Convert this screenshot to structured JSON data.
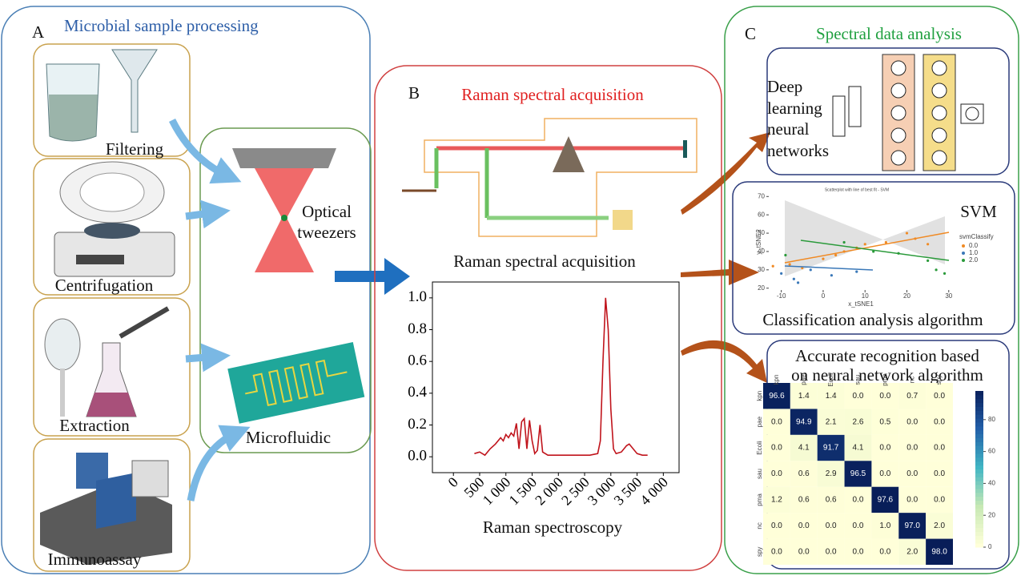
{
  "panel_a": {
    "letter": "A",
    "title": "Microbial sample processing",
    "methods": [
      "Filtering",
      "Centrifugation",
      "Extraction",
      "Immunoassay"
    ],
    "tweezers_label": [
      "Optical",
      "tweezers"
    ],
    "microfluidic_label": "Microfluidic"
  },
  "panel_b": {
    "letter": "B",
    "title": "Raman spectral acquisition",
    "caption": "Raman spectral acquisition",
    "spectrum_plot": {
      "type": "line",
      "xlabel": "Raman spectroscopy",
      "color": "#c0141c",
      "x": [
        400,
        500,
        600,
        700,
        800,
        900,
        950,
        1000,
        1050,
        1100,
        1150,
        1200,
        1250,
        1300,
        1350,
        1400,
        1450,
        1500,
        1550,
        1600,
        1650,
        1700,
        1800,
        2000,
        2200,
        2400,
        2600,
        2750,
        2800,
        2850,
        2900,
        2950,
        3000,
        3050,
        3100,
        3200,
        3300,
        3350,
        3400,
        3500,
        3600,
        3700
      ],
      "values": [
        0.02,
        0.03,
        0.01,
        0.05,
        0.08,
        0.12,
        0.1,
        0.14,
        0.12,
        0.15,
        0.13,
        0.21,
        0.05,
        0.22,
        0.24,
        0.05,
        0.23,
        0.1,
        0.02,
        0.04,
        0.2,
        0.03,
        0.01,
        0.01,
        0.01,
        0.01,
        0.01,
        0.02,
        0.1,
        0.6,
        1.0,
        0.8,
        0.3,
        0.05,
        0.02,
        0.03,
        0.07,
        0.08,
        0.06,
        0.02,
        0.01,
        0.01
      ],
      "xlim": [
        -400,
        4300
      ],
      "ylim": [
        -0.1,
        1.1
      ],
      "xticks": [
        0,
        500,
        {
          "value": 1000,
          "label": "1 000"
        },
        {
          "value": 1500,
          "label": "1 500"
        },
        {
          "value": 2000,
          "label": "2 000"
        },
        {
          "value": 2500,
          "label": "2 500"
        },
        {
          "value": 3000,
          "label": "3 000"
        },
        {
          "value": 3500,
          "label": "3 500"
        },
        {
          "value": 4000,
          "label": "4 000"
        }
      ],
      "yticks": [
        {
          "value": 0,
          "label": "0.0"
        },
        {
          "value": 0.2,
          "label": "0.2"
        },
        {
          "value": 0.4,
          "label": "0.4"
        },
        {
          "value": 0.6,
          "label": "0.6"
        },
        {
          "value": 0.8,
          "label": "0.8"
        },
        {
          "value": 1,
          "label": "1.0"
        }
      ]
    }
  },
  "panel_c": {
    "letter": "C",
    "title": "Spectral data analysis",
    "deep_learning_label": [
      "Deep",
      "learning",
      "neural",
      "networks"
    ],
    "svm": {
      "type": "scatter",
      "title": "Scatterplot with line of best fit - SVM",
      "badge": "SVM",
      "xlabel": "x_tSNE1",
      "ylabel": "y_tSNE2",
      "legend_title": "svmClassify",
      "caption": "Classification analysis algorithm",
      "xlim": [
        -13,
        31
      ],
      "ylim": [
        19,
        71
      ],
      "xticks": [
        -10,
        0,
        10,
        20,
        30
      ],
      "yticks": [
        20,
        30,
        40,
        50,
        60,
        70
      ],
      "series": [
        {
          "name": "0.0",
          "color": "#f08a24",
          "x": [
            -12,
            -8,
            -5,
            0,
            3,
            5,
            8,
            10,
            15,
            20,
            22,
            25
          ],
          "values": [
            32,
            33,
            31,
            36,
            38,
            40,
            42,
            44,
            45,
            50,
            47,
            44
          ]
        },
        {
          "name": "1.0",
          "color": "#3a78b8",
          "x": [
            -10,
            -7,
            -6,
            -3,
            2,
            8
          ],
          "values": [
            28,
            25,
            23,
            30,
            27,
            29
          ]
        },
        {
          "name": "2.0",
          "color": "#2a9a3a",
          "x": [
            -9,
            5,
            12,
            18,
            25,
            27,
            29
          ],
          "values": [
            38,
            45,
            40,
            39,
            35,
            30,
            28
          ]
        }
      ]
    },
    "matrix": {
      "type": "heatmap",
      "title": [
        "Accurate recognition based",
        "on neural network algorithm"
      ],
      "labels": [
        "kpn",
        "pae",
        "Ecoli",
        "sau",
        "pma",
        "nc",
        "spy"
      ],
      "values": [
        [
          96.6,
          1.4,
          1.4,
          0,
          0,
          0.7,
          0
        ],
        [
          0,
          94.9,
          2.1,
          2.6,
          0.5,
          0,
          0
        ],
        [
          0,
          4.1,
          91.7,
          4.1,
          0,
          0,
          0
        ],
        [
          0,
          0.6,
          2.9,
          96.5,
          0,
          0,
          0
        ],
        [
          1.2,
          0.6,
          0.6,
          0,
          97.6,
          0,
          0
        ],
        [
          0,
          0,
          0,
          0,
          1.0,
          97.0,
          2.0
        ],
        [
          0,
          0,
          0,
          0,
          0,
          2.0,
          98.0
        ]
      ],
      "value_labels": [
        [
          "96.6",
          "1.4",
          "1.4",
          "0.0",
          "0.0",
          "0.7",
          "0.0"
        ],
        [
          "0.0",
          "94.9",
          "2.1",
          "2.6",
          "0.5",
          "0.0",
          "0.0"
        ],
        [
          "0.0",
          "4.1",
          "91.7",
          "4.1",
          "0.0",
          "0.0",
          "0.0"
        ],
        [
          "0.0",
          "0.6",
          "2.9",
          "96.5",
          "0.0",
          "0.0",
          "0.0"
        ],
        [
          "1.2",
          "0.6",
          "0.6",
          "0.0",
          "97.6",
          "0.0",
          "0.0"
        ],
        [
          "0.0",
          "0.0",
          "0.0",
          "0.0",
          "1.0",
          "97.0",
          "2.0"
        ],
        [
          "0.0",
          "0.0",
          "0.0",
          "0.0",
          "0.0",
          "2.0",
          "98.0"
        ]
      ],
      "clim": [
        0,
        98.0
      ],
      "cticks": [
        0,
        20,
        40,
        60,
        80
      ]
    }
  }
}
